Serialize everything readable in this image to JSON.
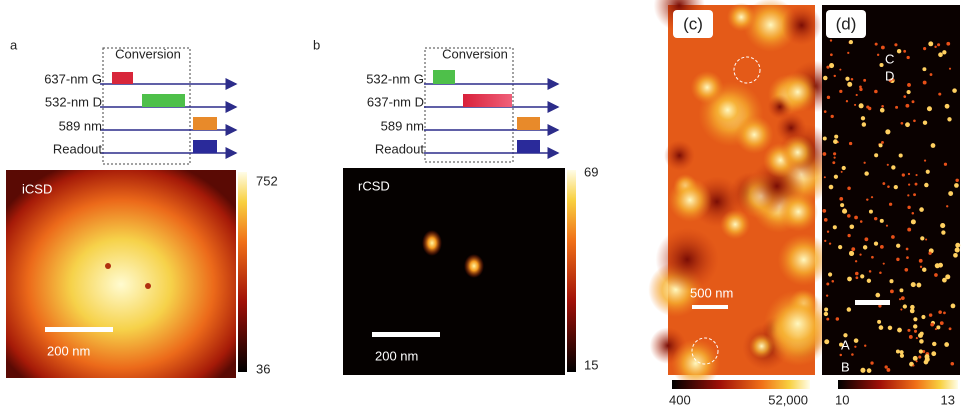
{
  "panels": [
    {
      "label": "a",
      "conversion": "Conversion",
      "rows": [
        "637-nm G",
        "532-nm D",
        "589 nm",
        "Readout"
      ],
      "image_label": "iCSD",
      "colorbar": {
        "max": 752,
        "min": 36
      },
      "scale_bar": "200 nm"
    },
    {
      "label": "b",
      "conversion": "Conversion",
      "rows": [
        "532-nm G",
        "637-nm D",
        "589 nm",
        "Readout"
      ],
      "image_label": "rCSD",
      "colorbar": {
        "max": 69,
        "min": 15
      },
      "scale_bar": "200 nm"
    },
    {
      "label": "(c)",
      "scale_bar": "500 nm",
      "colorbar": {
        "min": 400,
        "max": "52,000"
      }
    },
    {
      "label": "(d)",
      "markers": [
        "C",
        "D",
        "A",
        "B"
      ],
      "colorbar": {
        "min": 10,
        "max": 13
      }
    }
  ]
}
